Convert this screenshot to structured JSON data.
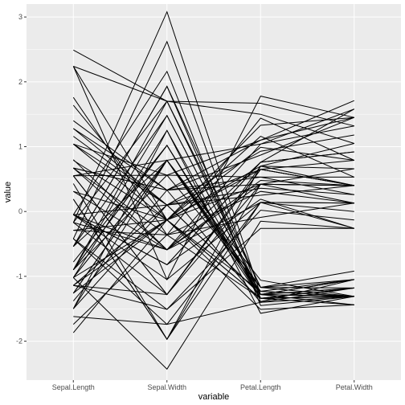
{
  "chart_data": {
    "type": "line",
    "title": "",
    "xlabel": "variable",
    "ylabel": "value",
    "categories": [
      "Sepal.Length",
      "Sepal.Width",
      "Petal.Length",
      "Petal.Width"
    ],
    "y_ticks": [
      -2,
      -1,
      0,
      1,
      2,
      3
    ],
    "ylim": [
      -2.6,
      3.2
    ],
    "grid": true,
    "legend": "none",
    "colors": {
      "panel": "#ebebeb",
      "gridline": "#ffffff",
      "line": "#000000",
      "tick_text": "#4d4d4d",
      "axis_title": "#000000"
    },
    "series": [
      {
        "values": [
          -0.9,
          1.02,
          -1.34,
          -1.31
        ]
      },
      {
        "values": [
          -1.14,
          -0.13,
          -1.34,
          -1.31
        ]
      },
      {
        "values": [
          -1.38,
          0.33,
          -1.4,
          -1.31
        ]
      },
      {
        "values": [
          -1.5,
          0.1,
          -1.28,
          -1.31
        ]
      },
      {
        "values": [
          -1.02,
          1.25,
          -1.34,
          -1.31
        ]
      },
      {
        "values": [
          -0.54,
          1.93,
          -1.17,
          -1.05
        ]
      },
      {
        "values": [
          -1.5,
          0.79,
          -1.34,
          -1.18
        ]
      },
      {
        "values": [
          -1.02,
          0.79,
          -1.28,
          -1.31
        ]
      },
      {
        "values": [
          -1.74,
          -0.36,
          -1.34,
          -1.31
        ]
      },
      {
        "values": [
          -1.14,
          0.1,
          -1.28,
          -1.44
        ]
      },
      {
        "values": [
          -0.54,
          1.48,
          -1.28,
          -1.31
        ]
      },
      {
        "values": [
          -1.26,
          0.79,
          -1.23,
          -1.31
        ]
      },
      {
        "values": [
          -1.26,
          -0.13,
          -1.34,
          -1.44
        ]
      },
      {
        "values": [
          -1.87,
          -0.13,
          -1.51,
          -1.44
        ]
      },
      {
        "values": [
          -0.05,
          2.16,
          -1.45,
          -1.31
        ]
      },
      {
        "values": [
          -0.17,
          3.08,
          -1.28,
          -1.05
        ]
      },
      {
        "values": [
          -0.54,
          1.93,
          -1.39,
          -1.05
        ]
      },
      {
        "values": [
          -0.9,
          1.02,
          -1.34,
          -1.18
        ]
      },
      {
        "values": [
          -0.17,
          1.7,
          -1.17,
          -1.18
        ]
      },
      {
        "values": [
          -0.9,
          1.7,
          -1.28,
          -1.18
        ]
      },
      {
        "values": [
          -0.54,
          0.79,
          -1.17,
          -1.31
        ]
      },
      {
        "values": [
          -0.9,
          1.48,
          -1.28,
          -1.05
        ]
      },
      {
        "values": [
          -1.5,
          1.25,
          -1.57,
          -1.31
        ]
      },
      {
        "values": [
          -0.9,
          0.56,
          -1.17,
          -0.92
        ]
      },
      {
        "values": [
          -1.26,
          0.79,
          -1.06,
          -1.31
        ]
      },
      {
        "values": [
          -1.02,
          -0.13,
          -1.23,
          -1.31
        ]
      },
      {
        "values": [
          -1.02,
          0.79,
          -1.23,
          -1.05
        ]
      },
      {
        "values": [
          -0.78,
          1.02,
          -1.28,
          -1.31
        ]
      },
      {
        "values": [
          -1.62,
          -1.74,
          -1.4,
          -1.18
        ]
      },
      {
        "values": [
          -0.42,
          2.62,
          -1.34,
          -1.31
        ]
      },
      {
        "values": [
          -1.14,
          -1.28,
          0.42,
          0.66
        ]
      },
      {
        "values": [
          1.4,
          0.33,
          0.53,
          0.26
        ]
      },
      {
        "values": [
          0.67,
          0.33,
          0.42,
          0.4
        ]
      },
      {
        "values": [
          1.28,
          0.1,
          0.65,
          0.4
        ]
      },
      {
        "values": [
          -0.42,
          -1.74,
          0.14,
          0.13
        ]
      },
      {
        "values": [
          0.8,
          -0.59,
          0.48,
          0.4
        ]
      },
      {
        "values": [
          -0.17,
          -0.59,
          0.42,
          0.13
        ]
      },
      {
        "values": [
          0.55,
          0.56,
          0.53,
          0.53
        ]
      },
      {
        "values": [
          -0.05,
          -0.82,
          0.76,
          0.92
        ]
      },
      {
        "values": [
          -1.02,
          -2.43,
          -0.15,
          -0.26
        ]
      },
      {
        "values": [
          0.31,
          -0.59,
          0.14,
          0.13
        ]
      },
      {
        "values": [
          0.67,
          -0.36,
          0.31,
          0.13
        ]
      },
      {
        "values": [
          -0.42,
          -1.51,
          0.02,
          -0.13
        ]
      },
      {
        "values": [
          1.04,
          -0.13,
          0.7,
          0.66
        ]
      },
      {
        "values": [
          -0.29,
          -0.36,
          -0.09,
          0.13
        ]
      },
      {
        "values": [
          1.04,
          0.1,
          0.36,
          0.26
        ]
      },
      {
        "values": [
          -0.05,
          -0.82,
          0.19,
          -0.26
        ]
      },
      {
        "values": [
          0.19,
          -1.97,
          0.14,
          -0.26
        ]
      },
      {
        "values": [
          -0.05,
          -1.05,
          0.14,
          0.0
        ]
      },
      {
        "values": [
          0.43,
          -1.97,
          0.42,
          0.4
        ]
      },
      {
        "values": [
          -0.29,
          -0.13,
          0.42,
          0.4
        ]
      },
      {
        "values": [
          -1.14,
          -1.51,
          -0.26,
          -0.26
        ]
      },
      {
        "values": [
          0.55,
          -1.28,
          0.65,
          0.4
        ]
      },
      {
        "values": [
          -0.05,
          -0.59,
          0.76,
          1.58
        ]
      },
      {
        "values": [
          0.55,
          0.79,
          1.04,
          1.58
        ]
      },
      {
        "values": [
          1.28,
          0.33,
          1.1,
          1.45
        ]
      },
      {
        "values": [
          1.64,
          -0.13,
          1.16,
          0.53
        ]
      },
      {
        "values": [
          2.24,
          -0.13,
          1.33,
          1.45
        ]
      },
      {
        "values": [
          -0.17,
          -1.28,
          0.7,
          1.05
        ]
      },
      {
        "values": [
          1.76,
          -0.36,
          1.44,
          0.79
        ]
      },
      {
        "values": [
          1.04,
          0.56,
          1.1,
          1.71
        ]
      },
      {
        "values": [
          2.49,
          1.7,
          1.5,
          1.05
        ]
      },
      {
        "values": [
          2.24,
          -1.05,
          1.78,
          1.45
        ]
      },
      {
        "values": [
          0.67,
          0.33,
          0.87,
          1.45
        ]
      },
      {
        "values": [
          0.31,
          -0.13,
          0.65,
          0.79
        ]
      },
      {
        "values": [
          0.67,
          -0.59,
          1.04,
          1.32
        ]
      },
      {
        "values": [
          -0.05,
          -0.82,
          0.76,
          0.92
        ]
      },
      {
        "values": [
          0.19,
          -1.97,
          0.7,
          0.4
        ]
      },
      {
        "values": [
          0.55,
          -1.28,
          0.65,
          0.4
        ]
      },
      {
        "values": [
          1.16,
          0.1,
          0.93,
          1.18
        ]
      },
      {
        "values": [
          0.79,
          -0.13,
          0.99,
          0.79
        ]
      },
      {
        "values": [
          2.24,
          1.7,
          1.67,
          1.32
        ]
      },
      {
        "values": [
          -0.05,
          0.1,
          0.25,
          0.4
        ]
      }
    ]
  }
}
